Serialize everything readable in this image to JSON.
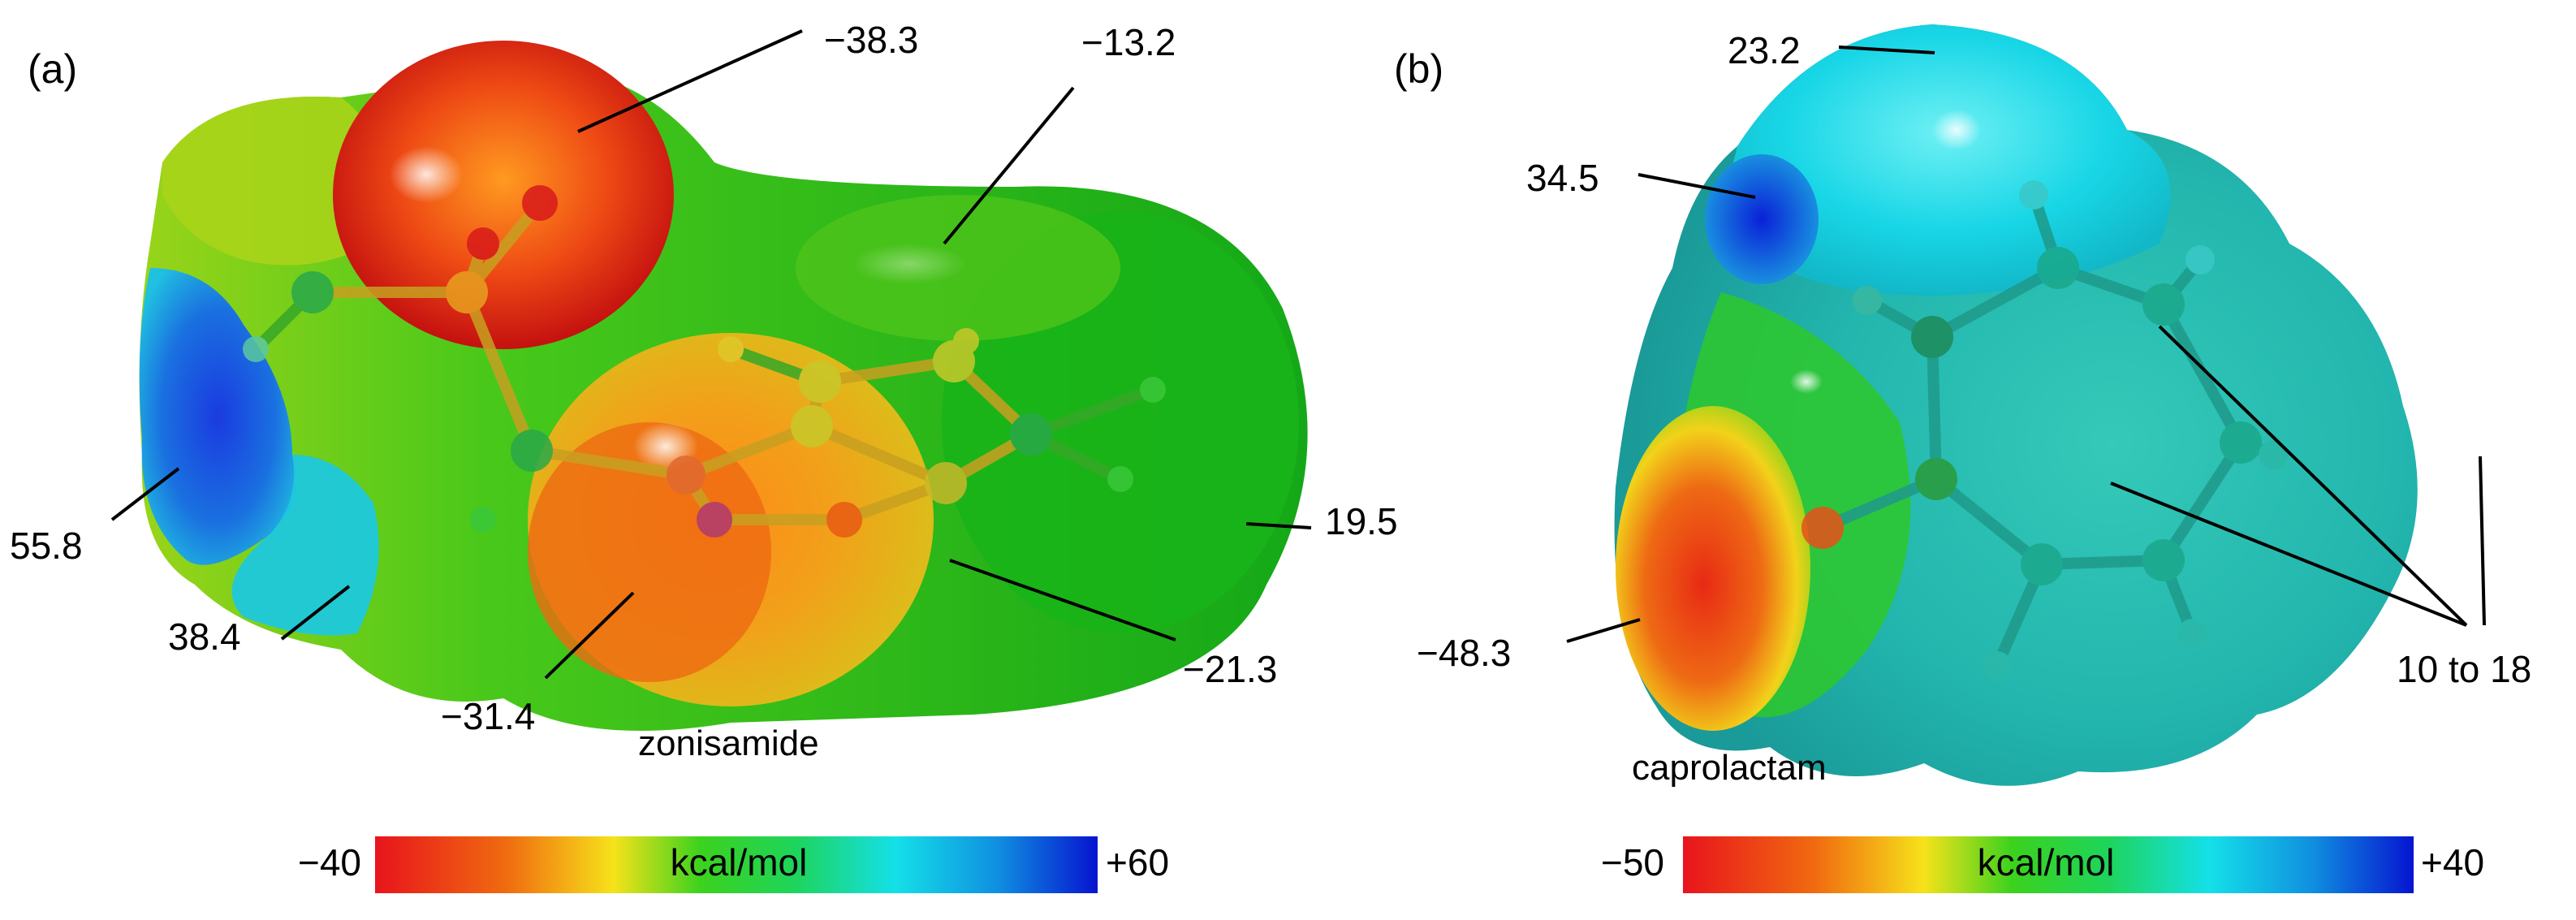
{
  "panel_a": {
    "label": "(a)",
    "molecule_name": "zonisamide",
    "values": [
      "−38.3",
      "−13.2",
      "55.8",
      "38.4",
      "−31.4",
      "−21.3",
      "19.5"
    ],
    "colorbar": {
      "min_label": "−40",
      "max_label": "+60",
      "unit": "kcal/mol"
    }
  },
  "panel_b": {
    "label": "(b)",
    "molecule_name": "caprolactam",
    "values": [
      "23.2",
      "34.5",
      "−48.3",
      "10 to 18"
    ],
    "colorbar": {
      "min_label": "−50",
      "max_label": "+40",
      "unit": "kcal/mol"
    }
  },
  "colors": {
    "negative": "#e4141b",
    "neutral": "#19c219",
    "positive": "#0a1fd8",
    "cyan": "#14d8e8"
  }
}
